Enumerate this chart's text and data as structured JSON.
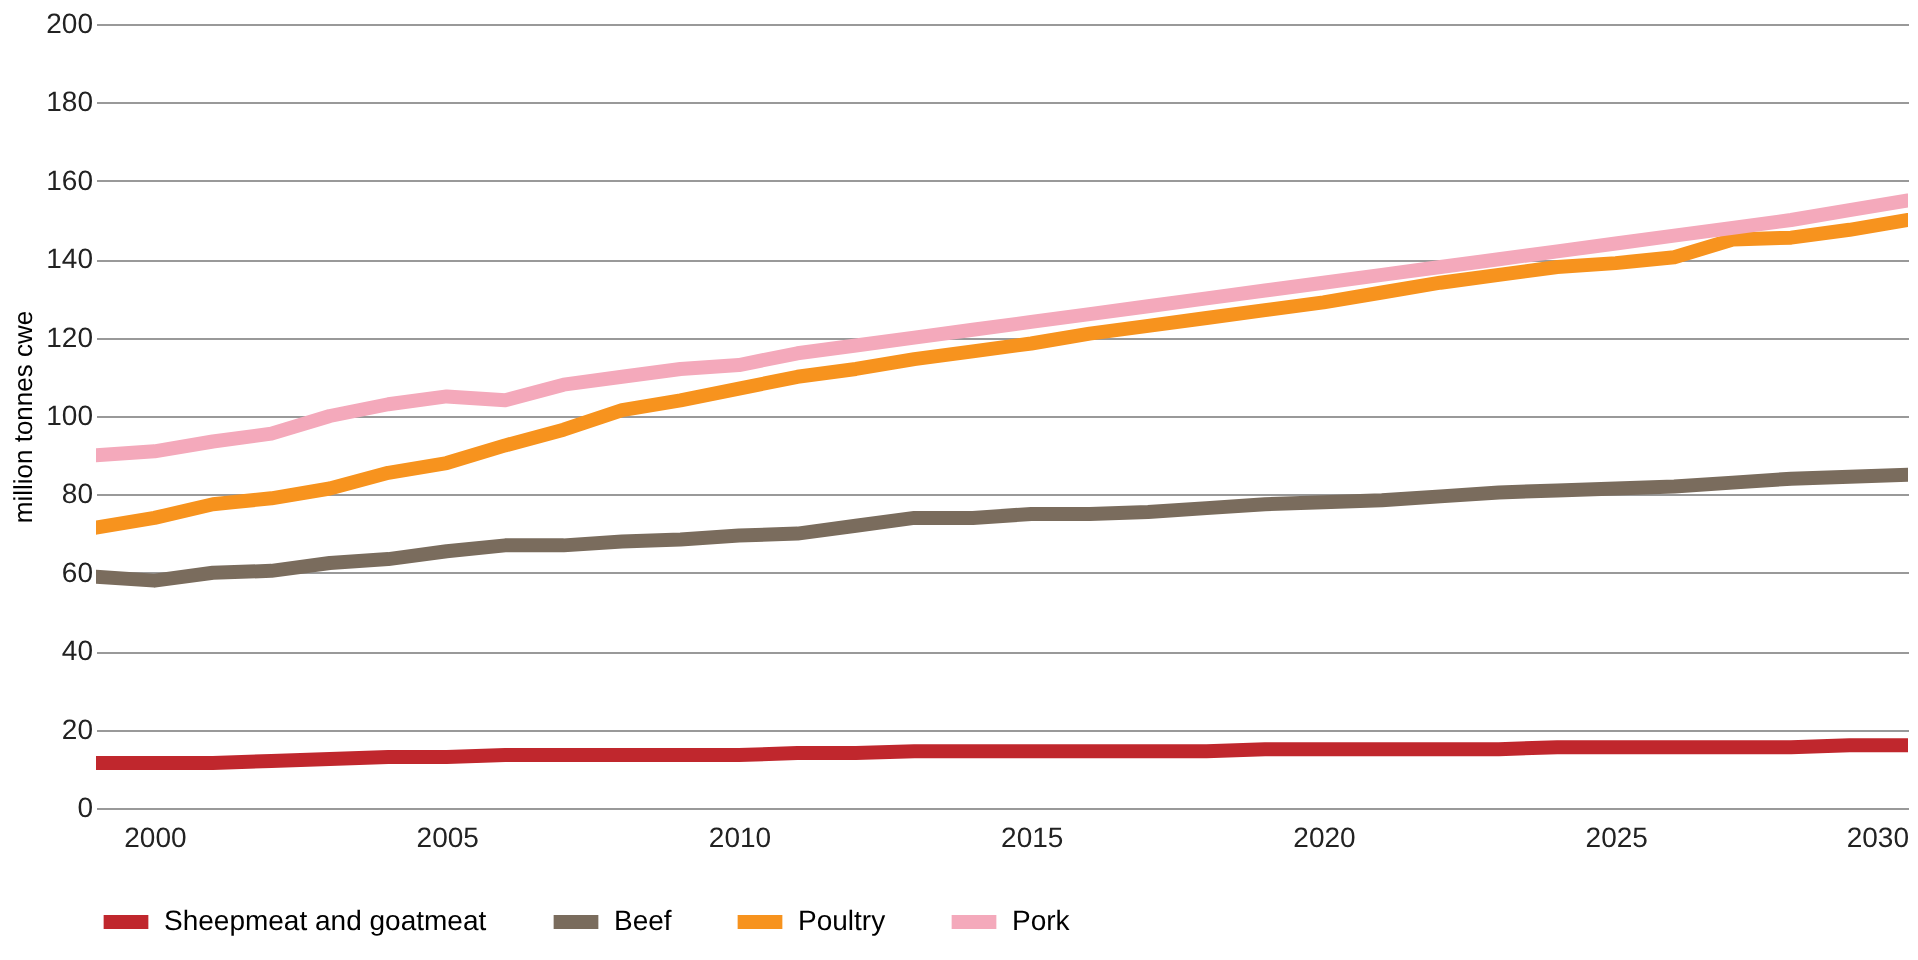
{
  "chart_data": {
    "type": "line",
    "ylabel": "million tonnes cwe",
    "x": [
      1999,
      2000,
      2001,
      2002,
      2003,
      2004,
      2005,
      2006,
      2007,
      2008,
      2009,
      2010,
      2011,
      2012,
      2013,
      2014,
      2015,
      2016,
      2017,
      2018,
      2019,
      2020,
      2021,
      2022,
      2023,
      2024,
      2025,
      2026,
      2027,
      2028,
      2029,
      2030
    ],
    "series": [
      {
        "name": "Sheepmeat and goatmeat",
        "color": "#c0272d",
        "values": [
          11.5,
          11.5,
          11.5,
          12,
          12.5,
          13,
          13,
          13.5,
          13.5,
          13.5,
          13.5,
          13.5,
          14,
          14,
          14.5,
          14.5,
          14.5,
          14.5,
          14.5,
          14.5,
          15,
          15,
          15,
          15,
          15,
          15.5,
          15.5,
          15.5,
          15.5,
          15.5,
          16,
          16
        ]
      },
      {
        "name": "Beef",
        "color": "#7a6c5d",
        "values": [
          59,
          58,
          60,
          60.5,
          62.5,
          63.5,
          65.5,
          67,
          67,
          68,
          68.5,
          69.5,
          70,
          72,
          74,
          74,
          75,
          75,
          75.5,
          76.5,
          77.5,
          78,
          78.5,
          79.5,
          80.5,
          81,
          81.5,
          82,
          83,
          84,
          84.5,
          85
        ]
      },
      {
        "name": "Poultry",
        "color": "#f7931e",
        "values": [
          71.5,
          74,
          77.5,
          79,
          81.5,
          85.5,
          88,
          92.5,
          96.5,
          101.5,
          104,
          107,
          110,
          112,
          114.5,
          116.5,
          118.5,
          121,
          123,
          125,
          127,
          129,
          131.5,
          134,
          136,
          138,
          139,
          140.5,
          145,
          145.5,
          147.5,
          150
        ]
      },
      {
        "name": "Pork",
        "color": "#f4a9bb",
        "values": [
          90,
          91,
          93.5,
          95.5,
          100,
          103,
          105,
          104,
          108,
          110,
          112,
          113,
          116,
          118,
          120,
          122,
          124,
          126,
          128,
          130,
          132,
          134,
          136,
          138,
          140,
          142,
          144,
          146,
          148,
          150,
          152.5,
          155
        ]
      }
    ],
    "xlim": [
      1999,
      2030
    ],
    "xticks": [
      2000,
      2005,
      2010,
      2015,
      2020,
      2025,
      2030
    ],
    "ylim": [
      0,
      200
    ],
    "yticks": [
      0,
      20,
      40,
      60,
      80,
      100,
      120,
      140,
      160,
      180,
      200
    ],
    "grid": "y",
    "legend": "bottom",
    "marker": "none",
    "line_style": "solid"
  }
}
